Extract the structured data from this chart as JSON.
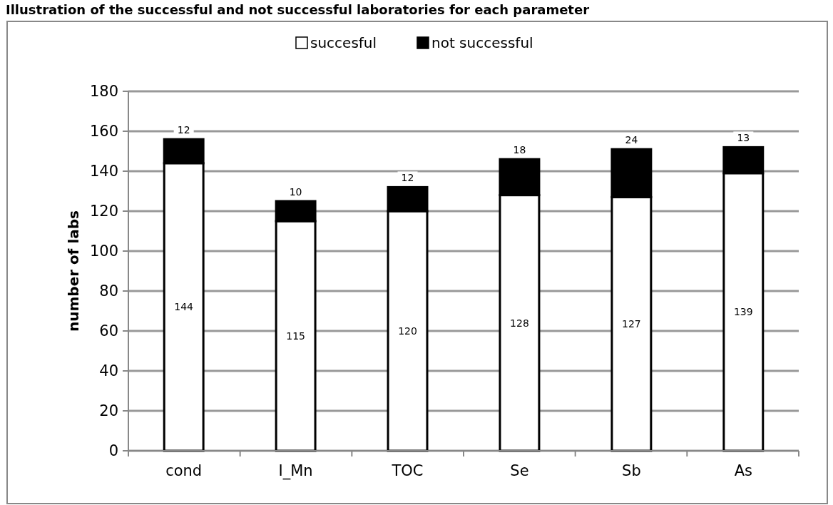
{
  "chart_data": {
    "type": "bar",
    "title": "Illustration of the successful and not successful laboratories for each parameter",
    "ylabel": "number of labs",
    "categories": [
      "cond",
      "I_Mn",
      "TOC",
      "Se",
      "Sb",
      "As"
    ],
    "stacked": true,
    "series": [
      {
        "name": "succesful",
        "color": "#ffffff",
        "values": [
          144,
          115,
          120,
          128,
          127,
          139
        ]
      },
      {
        "name": "not successful",
        "color": "#000000",
        "values": [
          12,
          10,
          12,
          18,
          24,
          13
        ]
      }
    ],
    "ylim": [
      0,
      180
    ],
    "yticks": [
      0,
      20,
      40,
      60,
      80,
      100,
      120,
      140,
      160,
      180
    ],
    "grid": "y",
    "legend": "top",
    "data_labels": true
  }
}
